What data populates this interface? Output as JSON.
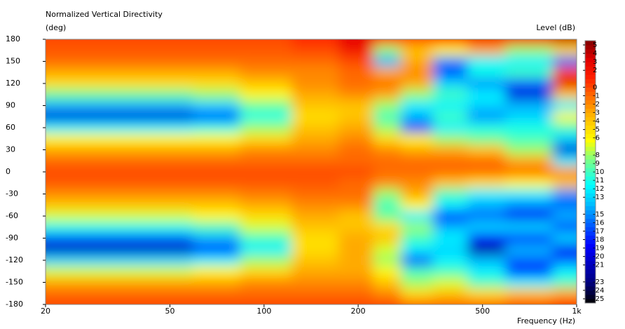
{
  "chart_data": {
    "type": "heatmap",
    "title": "Normalized Vertical Directivity",
    "y_label": "(deg)",
    "x_label": "Frequency  (Hz)",
    "colorbar_label": "Level  (dB)",
    "log_x": true,
    "x": [
      20,
      30,
      50,
      70,
      100,
      150,
      200,
      250,
      300,
      400,
      500,
      700,
      1000
    ],
    "y": [
      180,
      165,
      150,
      135,
      120,
      105,
      90,
      75,
      60,
      45,
      30,
      15,
      0,
      -15,
      -30,
      -45,
      -60,
      -75,
      -90,
      -105,
      -120,
      -135,
      -150,
      -165,
      -180
    ],
    "z": [
      [
        0,
        -0.5,
        -1,
        -3,
        -5,
        -9,
        -14,
        -20,
        -12,
        -6,
        -3,
        -1,
        0,
        -0.5,
        -2,
        -4,
        -7,
        -11,
        -16,
        -21,
        -13,
        -7,
        -3,
        -1,
        0
      ],
      [
        0,
        -0.5,
        -1,
        -3,
        -5,
        -9,
        -14,
        -20,
        -12,
        -6,
        -3,
        -1,
        0,
        -0.5,
        -2,
        -4,
        -7,
        -11,
        -16,
        -21,
        -13,
        -7,
        -3,
        -1,
        0
      ],
      [
        0,
        -0.5,
        -1,
        -3,
        -5,
        -9,
        -14,
        -20,
        -12,
        -6,
        -3,
        -1,
        0,
        -0.5,
        -2,
        -4,
        -7,
        -11,
        -16,
        -21,
        -13,
        -7,
        -3,
        -1,
        0
      ],
      [
        0,
        -0.5,
        -1,
        -3,
        -5,
        -8,
        -13,
        -17,
        -11,
        -6,
        -3,
        -1,
        0,
        -0.5,
        -2,
        -4,
        -6,
        -10,
        -14,
        -18,
        -12,
        -6,
        -3,
        -1,
        0
      ],
      [
        0,
        -0.5,
        -1,
        -2,
        -4,
        -6,
        -9,
        -11,
        -8,
        -5,
        -2,
        -1,
        0,
        -0.5,
        -1.5,
        -3,
        -5,
        -7,
        -10,
        -12,
        -8,
        -5,
        -2,
        -1,
        0
      ],
      [
        1,
        0,
        -1,
        -2,
        -2,
        -3,
        -4,
        -5,
        -4,
        -3,
        -2,
        -1,
        0,
        -0.5,
        -1,
        -2,
        -3,
        -4,
        -5,
        -5,
        -4,
        -3,
        -2,
        -1,
        0
      ],
      [
        3,
        2,
        0,
        -1,
        -1,
        -2,
        -4,
        -4,
        -3,
        -2,
        -1,
        -1,
        0,
        -1,
        -1,
        -2,
        -4,
        -4,
        -3,
        -3,
        -3,
        -3,
        -2,
        -1,
        0
      ],
      [
        1,
        -8,
        -14,
        -3,
        -1,
        -3,
        -8,
        -10,
        -8,
        -5,
        -2,
        -1,
        -1,
        -2,
        -8,
        -10,
        -9,
        -5,
        -4,
        -7,
        -8,
        -6,
        -4,
        -2,
        0
      ],
      [
        0,
        -4,
        -3,
        -2,
        -3,
        -8,
        -12,
        -14,
        -17,
        -6,
        -3,
        -1,
        -1,
        -2,
        -3,
        -6,
        -12,
        -8,
        -10,
        -12,
        -17,
        -10,
        -8,
        -5,
        -1
      ],
      [
        1,
        -6,
        -15,
        -17,
        -13,
        -10,
        -12,
        -10,
        -12,
        -8,
        -3,
        -1,
        -1,
        -4,
        -10,
        -12,
        -18,
        -14,
        -12,
        -13,
        -12,
        -10,
        -7,
        -4,
        -1
      ],
      [
        2,
        -3,
        -12,
        -11,
        -15,
        -12,
        -13,
        -15,
        -11,
        -9,
        -4,
        -1,
        -1,
        -5,
        -12,
        -14,
        -16,
        -13,
        -18,
        -22,
        -14,
        -12,
        -10,
        -5,
        -1
      ],
      [
        2,
        -8,
        -12,
        -10,
        -16,
        -20,
        -14,
        -13,
        -11,
        -10,
        -8,
        -3,
        -1,
        -6,
        -12,
        -15,
        -19,
        -13,
        -18,
        -14,
        -16,
        -18,
        -12,
        -4,
        0
      ],
      [
        4,
        -5,
        -16,
        0,
        3,
        -4,
        -12,
        -6,
        -10,
        -13,
        -20,
        -12,
        -2,
        -4,
        -15,
        -16,
        -14,
        -17,
        -13,
        -19,
        -16,
        -12,
        -10,
        -3,
        1
      ]
    ],
    "xlim": [
      20,
      1000
    ],
    "xticks": [
      20,
      50,
      100,
      200,
      500,
      {
        "value": 1000,
        "label": "1k"
      }
    ],
    "ylim": [
      -180,
      180
    ],
    "yticks": [
      180,
      150,
      120,
      90,
      60,
      30,
      0,
      -30,
      -60,
      -90,
      -120,
      -150,
      -180
    ],
    "zlim": [
      -25.5,
      5.5
    ],
    "zticks": [
      5,
      4,
      3,
      2,
      0,
      -1,
      -2,
      -3,
      -4,
      -5,
      -6,
      -8,
      -9,
      -10,
      -11,
      -12,
      -13,
      -15,
      -16,
      -17,
      -18,
      -19,
      -20,
      -21,
      -23,
      -24,
      -25
    ]
  }
}
